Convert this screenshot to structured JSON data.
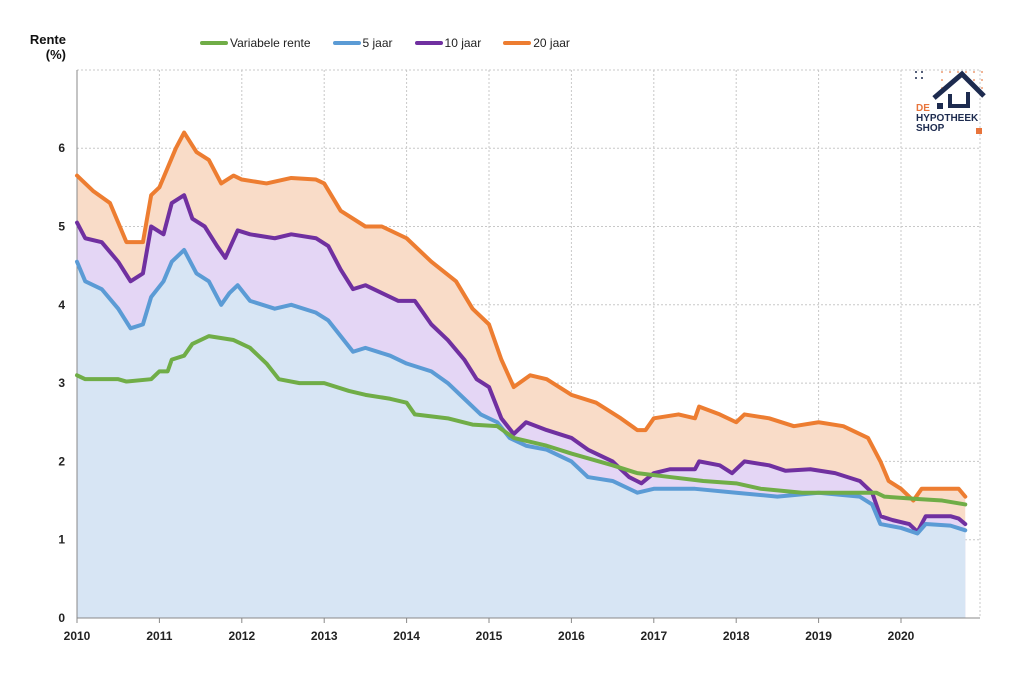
{
  "chart_data": {
    "type": "area",
    "ylabel": "Rente (%)",
    "ylabel_lines": [
      "Rente",
      "(%)"
    ],
    "xlim": [
      2010,
      2021
    ],
    "ylim": [
      0,
      7
    ],
    "x_ticks": [
      "2010",
      "2011",
      "2012",
      "2013",
      "2014",
      "2015",
      "2016",
      "2017",
      "2018",
      "2019",
      "2020"
    ],
    "y_ticks": [
      "0",
      "1",
      "2",
      "3",
      "4",
      "5",
      "6"
    ],
    "grid": true,
    "legend_position": "top",
    "series": [
      {
        "name": "20 jaar",
        "color": "#ed7d31",
        "fill": "#f9dcc8",
        "x": [
          2010.0,
          2010.2,
          2010.4,
          2010.6,
          2010.8,
          2010.9,
          2011.0,
          2011.2,
          2011.3,
          2011.45,
          2011.6,
          2011.75,
          2011.9,
          2012.0,
          2012.3,
          2012.6,
          2012.9,
          2013.0,
          2013.2,
          2013.5,
          2013.7,
          2014.0,
          2014.3,
          2014.6,
          2014.8,
          2015.0,
          2015.15,
          2015.3,
          2015.5,
          2015.7,
          2016.0,
          2016.3,
          2016.6,
          2016.8,
          2016.9,
          2017.0,
          2017.3,
          2017.5,
          2017.55,
          2017.8,
          2018.0,
          2018.1,
          2018.4,
          2018.7,
          2019.0,
          2019.3,
          2019.6,
          2019.75,
          2019.85,
          2020.0,
          2020.15,
          2020.25,
          2020.5,
          2020.7,
          2020.78
        ],
        "y": [
          5.65,
          5.45,
          5.3,
          4.8,
          4.8,
          5.4,
          5.5,
          6.0,
          6.2,
          5.95,
          5.85,
          5.55,
          5.65,
          5.6,
          5.55,
          5.62,
          5.6,
          5.55,
          5.2,
          5.0,
          5.0,
          4.85,
          4.55,
          4.3,
          3.95,
          3.75,
          3.3,
          2.95,
          3.1,
          3.05,
          2.85,
          2.75,
          2.55,
          2.4,
          2.4,
          2.55,
          2.6,
          2.55,
          2.7,
          2.6,
          2.5,
          2.6,
          2.55,
          2.45,
          2.5,
          2.45,
          2.3,
          2.0,
          1.75,
          1.65,
          1.5,
          1.65,
          1.65,
          1.65,
          1.55
        ]
      },
      {
        "name": "10 jaar",
        "color": "#7030a0",
        "fill": "#e4d6f5",
        "x": [
          2010.0,
          2010.1,
          2010.3,
          2010.5,
          2010.65,
          2010.8,
          2010.9,
          2011.05,
          2011.15,
          2011.3,
          2011.4,
          2011.55,
          2011.7,
          2011.8,
          2011.95,
          2012.1,
          2012.4,
          2012.6,
          2012.9,
          2013.05,
          2013.2,
          2013.35,
          2013.5,
          2013.7,
          2013.9,
          2014.1,
          2014.3,
          2014.5,
          2014.7,
          2014.85,
          2015.0,
          2015.15,
          2015.3,
          2015.45,
          2015.7,
          2016.0,
          2016.2,
          2016.5,
          2016.7,
          2016.85,
          2017.0,
          2017.2,
          2017.5,
          2017.55,
          2017.8,
          2017.95,
          2018.1,
          2018.4,
          2018.6,
          2018.9,
          2019.2,
          2019.5,
          2019.65,
          2019.75,
          2019.9,
          2020.1,
          2020.2,
          2020.3,
          2020.6,
          2020.7,
          2020.78
        ],
        "y": [
          5.05,
          4.85,
          4.8,
          4.55,
          4.3,
          4.4,
          5.0,
          4.9,
          5.3,
          5.4,
          5.1,
          5.0,
          4.75,
          4.6,
          4.95,
          4.9,
          4.85,
          4.9,
          4.85,
          4.75,
          4.45,
          4.2,
          4.25,
          4.15,
          4.05,
          4.05,
          3.75,
          3.55,
          3.3,
          3.05,
          2.95,
          2.55,
          2.35,
          2.5,
          2.4,
          2.3,
          2.15,
          2.0,
          1.8,
          1.72,
          1.85,
          1.9,
          1.9,
          2.0,
          1.95,
          1.85,
          2.0,
          1.95,
          1.88,
          1.9,
          1.85,
          1.75,
          1.6,
          1.3,
          1.25,
          1.2,
          1.1,
          1.3,
          1.3,
          1.27,
          1.2
        ]
      },
      {
        "name": "5 jaar",
        "color": "#5b9bd5",
        "fill": "#d7e5f4",
        "x": [
          2010.0,
          2010.1,
          2010.3,
          2010.5,
          2010.65,
          2010.8,
          2010.9,
          2011.05,
          2011.15,
          2011.3,
          2011.45,
          2011.6,
          2011.75,
          2011.85,
          2011.95,
          2012.1,
          2012.4,
          2012.6,
          2012.9,
          2013.05,
          2013.2,
          2013.35,
          2013.5,
          2013.8,
          2014.0,
          2014.3,
          2014.5,
          2014.7,
          2014.9,
          2015.1,
          2015.25,
          2015.45,
          2015.7,
          2016.0,
          2016.2,
          2016.5,
          2016.8,
          2017.0,
          2017.5,
          2018.0,
          2018.5,
          2019.0,
          2019.5,
          2019.65,
          2019.75,
          2020.0,
          2020.2,
          2020.3,
          2020.6,
          2020.78
        ],
        "y": [
          4.55,
          4.3,
          4.2,
          3.95,
          3.7,
          3.75,
          4.1,
          4.3,
          4.55,
          4.7,
          4.4,
          4.3,
          4.0,
          4.15,
          4.25,
          4.05,
          3.95,
          4.0,
          3.9,
          3.8,
          3.6,
          3.4,
          3.45,
          3.35,
          3.25,
          3.15,
          3.0,
          2.8,
          2.6,
          2.5,
          2.3,
          2.2,
          2.15,
          2.0,
          1.8,
          1.75,
          1.6,
          1.65,
          1.65,
          1.6,
          1.55,
          1.6,
          1.55,
          1.45,
          1.2,
          1.15,
          1.08,
          1.2,
          1.18,
          1.12
        ]
      },
      {
        "name": "Variabele rente",
        "color": "#70ad47",
        "fill": null,
        "x": [
          2010.0,
          2010.1,
          2010.5,
          2010.6,
          2010.9,
          2011.0,
          2011.1,
          2011.15,
          2011.3,
          2011.4,
          2011.6,
          2011.9,
          2012.1,
          2012.3,
          2012.45,
          2012.7,
          2013.0,
          2013.3,
          2013.5,
          2013.8,
          2014.0,
          2014.1,
          2014.5,
          2014.8,
          2015.1,
          2015.3,
          2015.7,
          2016.0,
          2016.5,
          2016.8,
          2017.2,
          2017.6,
          2018.0,
          2018.3,
          2018.8,
          2019.5,
          2019.7,
          2019.8,
          2020.2,
          2020.5,
          2020.78
        ],
        "y": [
          3.1,
          3.05,
          3.05,
          3.02,
          3.05,
          3.15,
          3.15,
          3.3,
          3.35,
          3.5,
          3.6,
          3.55,
          3.45,
          3.25,
          3.05,
          3.0,
          3.0,
          2.9,
          2.85,
          2.8,
          2.75,
          2.6,
          2.55,
          2.47,
          2.45,
          2.3,
          2.2,
          2.1,
          1.95,
          1.85,
          1.8,
          1.75,
          1.72,
          1.65,
          1.6,
          1.6,
          1.6,
          1.55,
          1.52,
          1.5,
          1.45
        ]
      }
    ],
    "legend_order": [
      "Variabele rente",
      "5 jaar",
      "10 jaar",
      "20 jaar"
    ]
  },
  "logo": {
    "line1": "DE",
    "line2": "HYPOTHEEK",
    "line3": "SHOP"
  }
}
